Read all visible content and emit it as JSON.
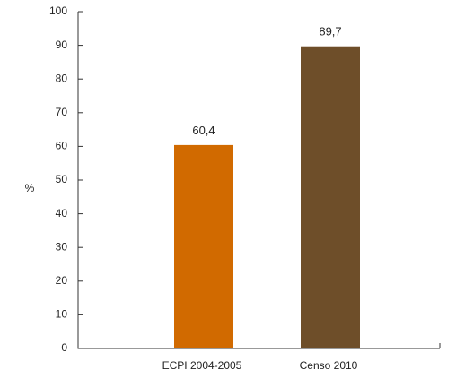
{
  "chart_data": {
    "type": "bar",
    "title": "",
    "xlabel": "",
    "ylabel": "%",
    "ylim": [
      0,
      100
    ],
    "yticks": [
      0,
      10,
      20,
      30,
      40,
      50,
      60,
      70,
      80,
      90,
      100
    ],
    "grid": false,
    "categories": [
      "ECPI 2004-2005",
      "Censo 2010"
    ],
    "values": [
      60.4,
      89.7
    ],
    "value_labels": [
      "60,4",
      "89,7"
    ],
    "colors": [
      "#d16a00",
      "#6e4e29"
    ]
  }
}
